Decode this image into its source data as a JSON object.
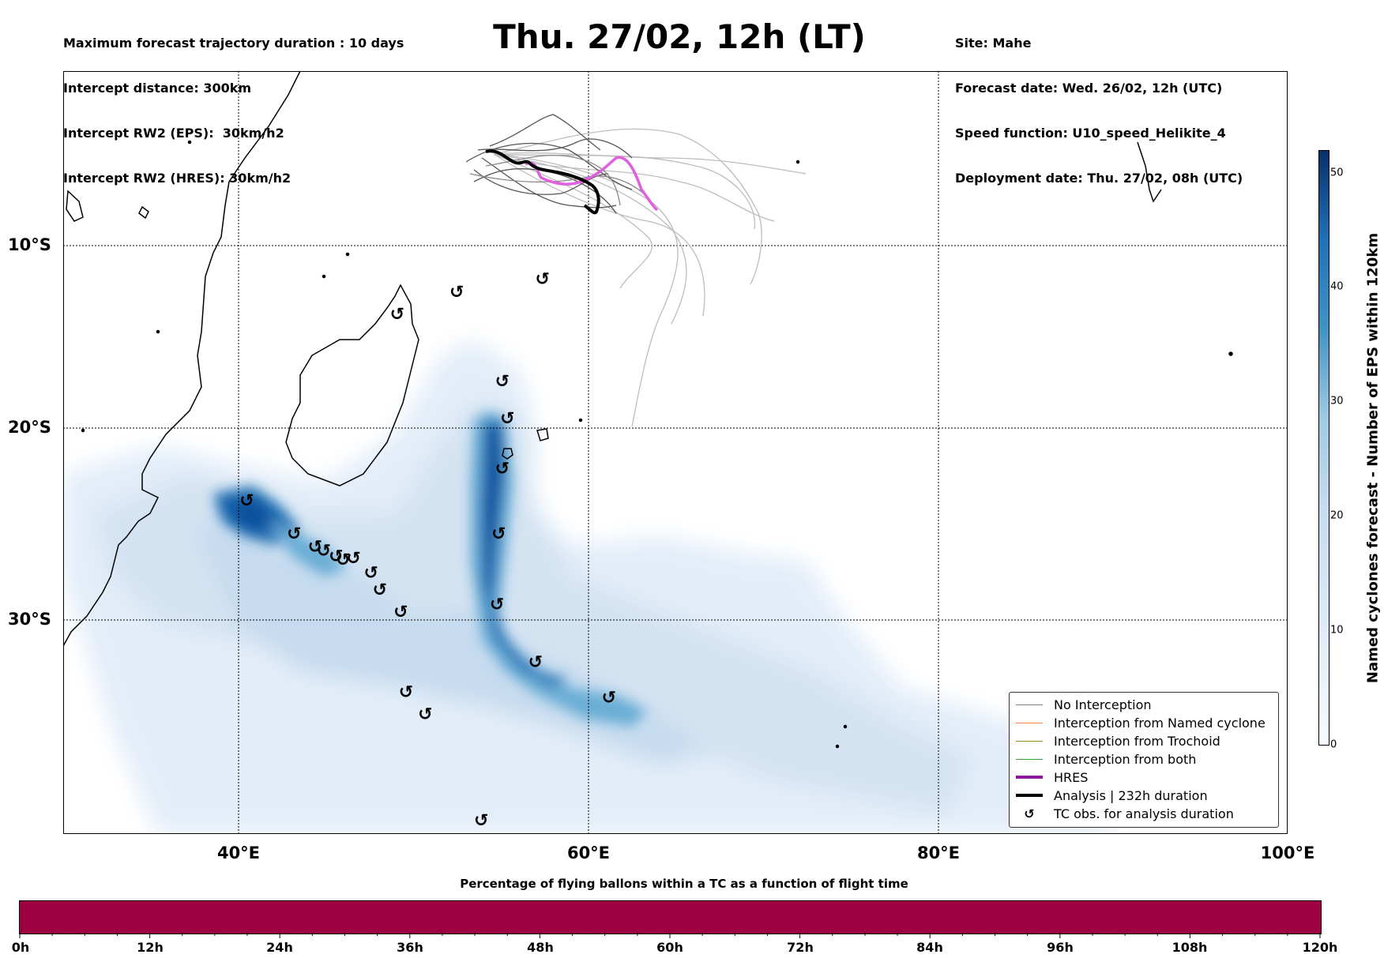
{
  "header": {
    "title": "Thu. 27/02, 12h (LT)",
    "left_lines": [
      "Maximum forecast trajectory duration : 10 days",
      "Intercept distance: 300km",
      "Intercept RW2 (EPS):  30km/h2",
      "Intercept RW2 (HRES): 30km/h2"
    ],
    "right_lines": [
      "Site: Mahe",
      "Forecast date: Wed. 26/02, 12h (UTC)",
      "Speed function: U10_speed_Helikite_4",
      "Deployment date: Thu. 27/02, 08h (UTC)"
    ]
  },
  "map": {
    "lon_range": [
      30,
      100
    ],
    "lat_range": [
      -42,
      -1
    ],
    "lat_labels": [
      "10°S",
      "20°S",
      "30°S"
    ],
    "lon_labels": [
      "40°E",
      "60°E",
      "80°E",
      "100°E"
    ],
    "tc_symbol": "↺",
    "tc_observations": [
      [
        57.4,
        -12.2
      ],
      [
        52.5,
        -12.9
      ],
      [
        49.1,
        -14.1
      ],
      [
        55.1,
        -17.7
      ],
      [
        55.4,
        -19.7
      ],
      [
        55.1,
        -22.4
      ],
      [
        40.5,
        -24.1
      ],
      [
        43.2,
        -25.9
      ],
      [
        44.4,
        -26.6
      ],
      [
        44.9,
        -26.8
      ],
      [
        45.6,
        -27.1
      ],
      [
        46.0,
        -27.3
      ],
      [
        46.6,
        -27.2
      ],
      [
        47.6,
        -28.0
      ],
      [
        48.1,
        -28.9
      ],
      [
        49.3,
        -30.1
      ],
      [
        54.9,
        -25.9
      ],
      [
        54.8,
        -29.7
      ],
      [
        57.0,
        -32.8
      ],
      [
        49.6,
        -34.4
      ],
      [
        50.7,
        -35.6
      ],
      [
        61.2,
        -34.7
      ],
      [
        53.9,
        -41.3
      ]
    ],
    "colors": {
      "eps_track": "#a0a0a0",
      "eps_track_dark": "#555555",
      "hres": "#e060e0",
      "analysis": "#000000"
    }
  },
  "colorbar": {
    "label": "Named cyclones forecast - Number of EPS within 120km",
    "ticks": [
      "0",
      "10",
      "20",
      "30",
      "40",
      "50"
    ],
    "range": [
      0,
      52
    ]
  },
  "bottom_bar": {
    "title": "Percentage of flying ballons within a TC as a function of flight time",
    "color": "#9e0142",
    "ticks": [
      "0h",
      "12h",
      "24h",
      "36h",
      "48h",
      "60h",
      "72h",
      "84h",
      "96h",
      "108h",
      "120h"
    ]
  },
  "legend": {
    "items": [
      {
        "label": "No Interception",
        "color": "#7f7f7f",
        "width": 1
      },
      {
        "label": "Interception from Named cyclone",
        "color": "#ff7f3f",
        "width": 1
      },
      {
        "label": "Interception from Trochoid",
        "color": "#9a8a20",
        "width": 1
      },
      {
        "label": "Interception from both",
        "color": "#30a030",
        "width": 1
      },
      {
        "label": "HRES",
        "color": "#8b1a9b",
        "width": 4
      },
      {
        "label": "Analysis | 232h duration",
        "color": "#000000",
        "width": 4
      },
      {
        "label": "TC obs. for analysis duration",
        "symbol": "↺"
      }
    ]
  }
}
